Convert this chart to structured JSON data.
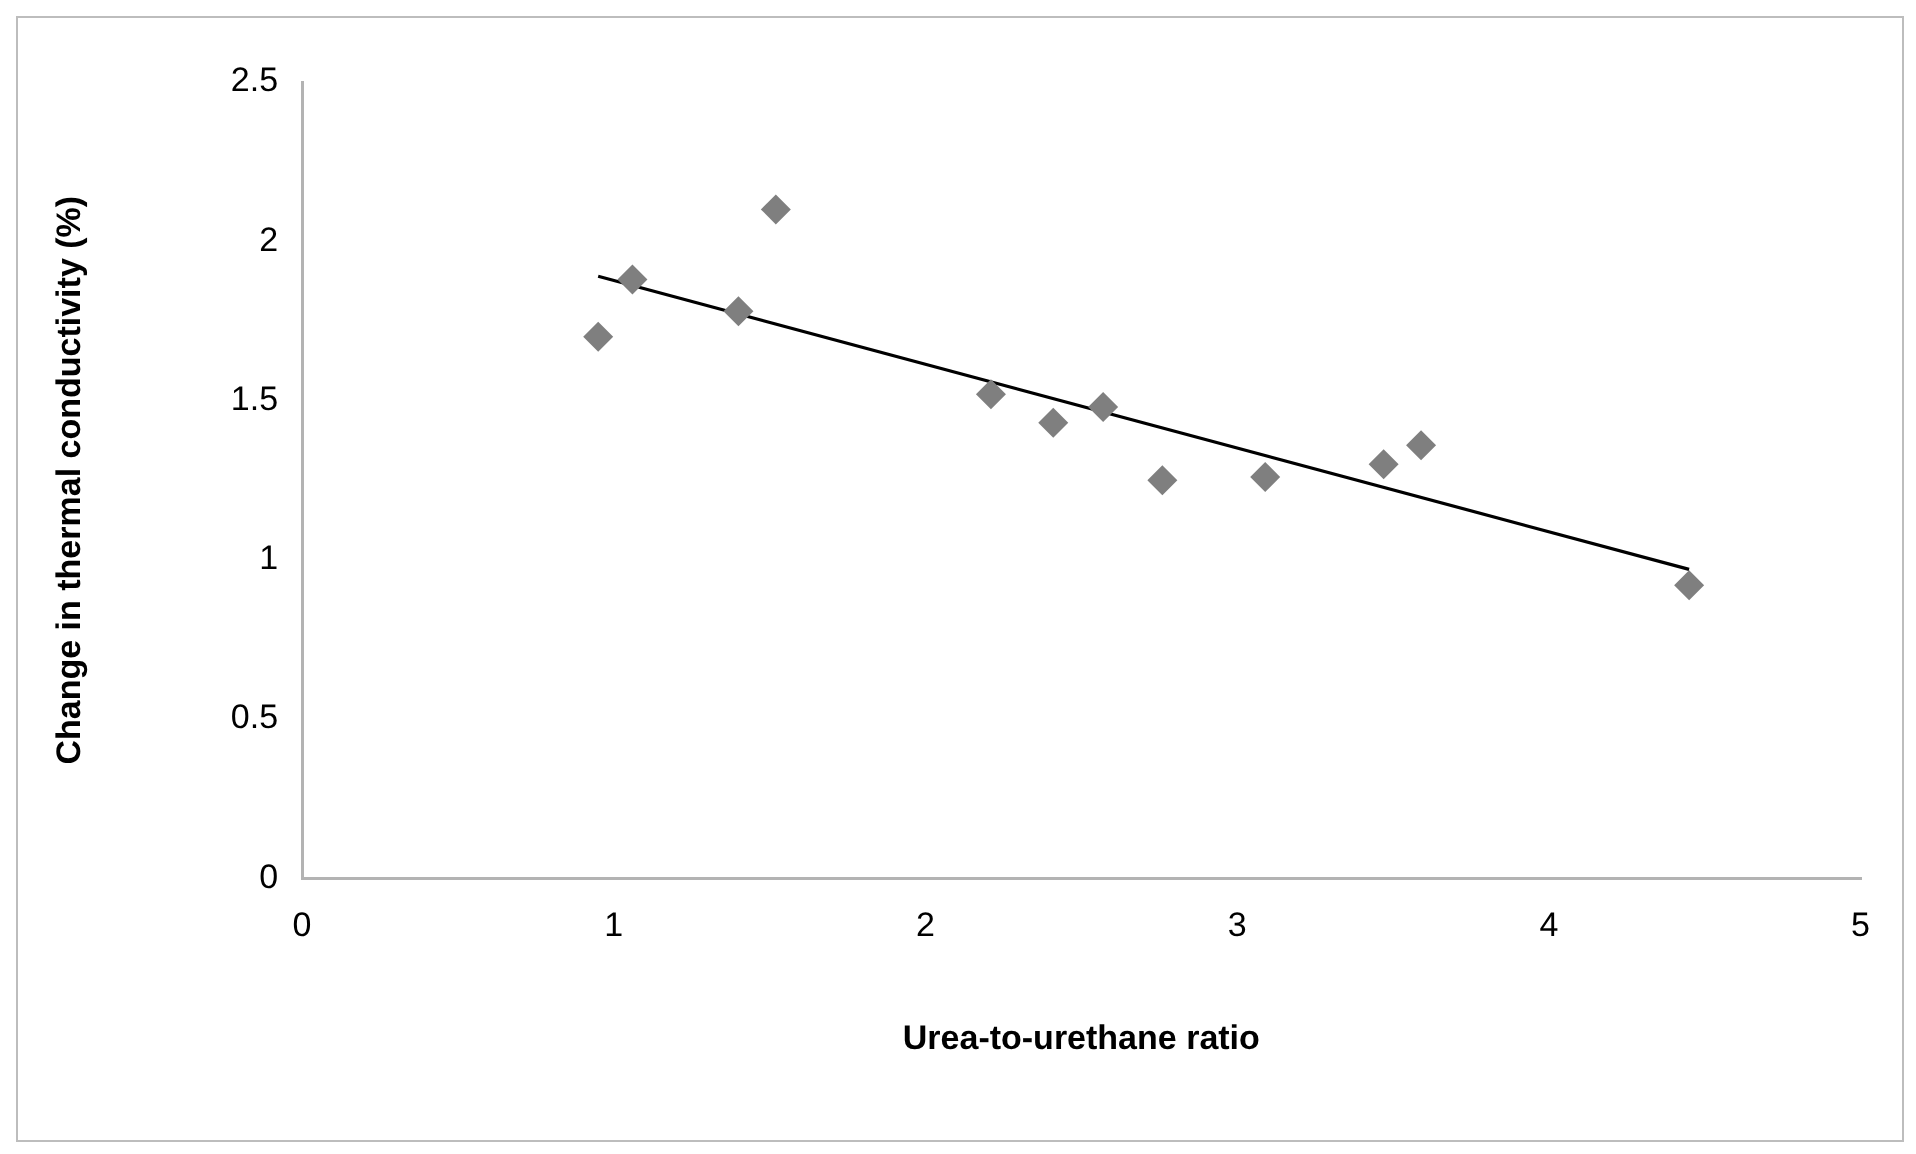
{
  "chart_data": {
    "type": "scatter",
    "xlabel": "Urea-to-urethane ratio",
    "ylabel": "Change in thermal conductivity (%)",
    "xlim": [
      0,
      5
    ],
    "xticks": [
      0,
      1,
      2,
      3,
      4,
      5
    ],
    "ylim": [
      0,
      2.5
    ],
    "yticks": [
      0,
      0.5,
      1,
      1.5,
      2,
      2.5
    ],
    "grid": false,
    "marker": "diamond",
    "series": [
      {
        "color": "#7f7f7f",
        "x": [
          0.95,
          1.06,
          1.4,
          1.52,
          2.21,
          2.41,
          2.57,
          2.76,
          3.09,
          3.47,
          3.59,
          4.45
        ],
        "values": [
          1.7,
          1.88,
          1.78,
          2.1,
          1.52,
          1.43,
          1.48,
          1.25,
          1.26,
          1.3,
          1.36,
          0.92
        ]
      },
      {
        "type": "line",
        "color": "#000000",
        "marker": "none",
        "line_style": "solid",
        "x": [
          0.95,
          4.45
        ],
        "values": [
          1.89,
          0.97
        ]
      }
    ]
  }
}
